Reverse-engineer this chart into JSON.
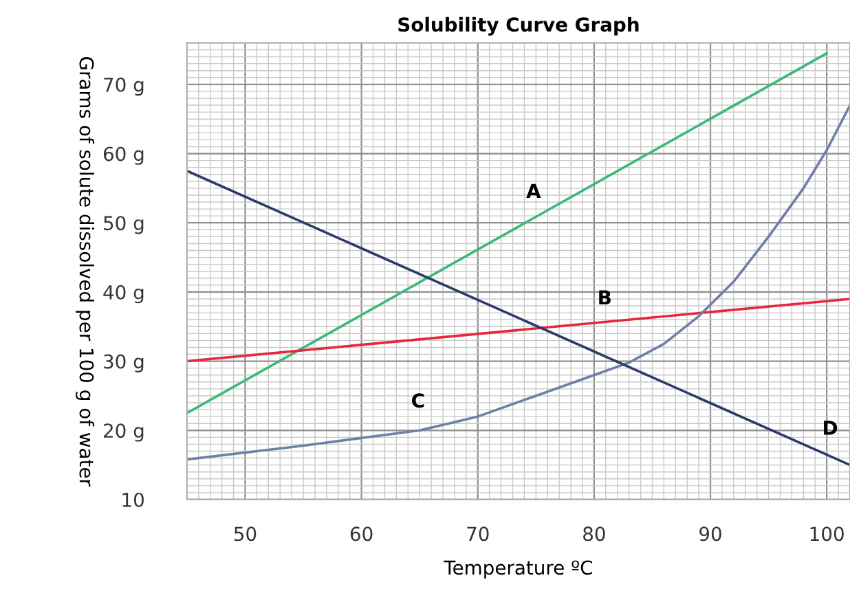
{
  "chart_data": {
    "type": "line",
    "title": "Solubility Curve Graph",
    "xlabel": "Temperature ºC",
    "ylabel": "Grams of solute dissolved per 100 g of water",
    "xlim": [
      45,
      102
    ],
    "ylim": [
      10,
      76
    ],
    "xticks": [
      50,
      60,
      70,
      80,
      90,
      100
    ],
    "yticks": [
      10,
      {
        "value": 20,
        "label": "20 g"
      },
      {
        "value": 30,
        "label": "30 g"
      },
      {
        "value": 40,
        "label": "40 g"
      },
      {
        "value": 50,
        "label": "50 g"
      },
      {
        "value": 60,
        "label": "60 g"
      },
      {
        "value": 70,
        "label": "70 g"
      }
    ],
    "grid": true,
    "legend": false,
    "marker": "none",
    "line_style": "solid",
    "series": [
      {
        "name": "A",
        "color": "#3cb878",
        "x": [
          45,
          100
        ],
        "values": [
          22.5,
          74.5
        ]
      },
      {
        "name": "B",
        "color": "#e8283a",
        "x": [
          45,
          102
        ],
        "values": [
          30,
          39
        ]
      },
      {
        "name": "C",
        "color": "#6e7fa8",
        "x": [
          45,
          55,
          65,
          70,
          75,
          80,
          83,
          86,
          89,
          92,
          95,
          98,
          100,
          102
        ],
        "values": [
          15.8,
          17.8,
          20,
          22,
          25,
          28,
          29.8,
          32.5,
          36.5,
          41.5,
          48,
          55,
          60.5,
          67
        ]
      },
      {
        "name": "D",
        "color": "#2b3a67",
        "x": [
          45,
          102
        ],
        "values": [
          57.5,
          15
        ]
      }
    ]
  }
}
